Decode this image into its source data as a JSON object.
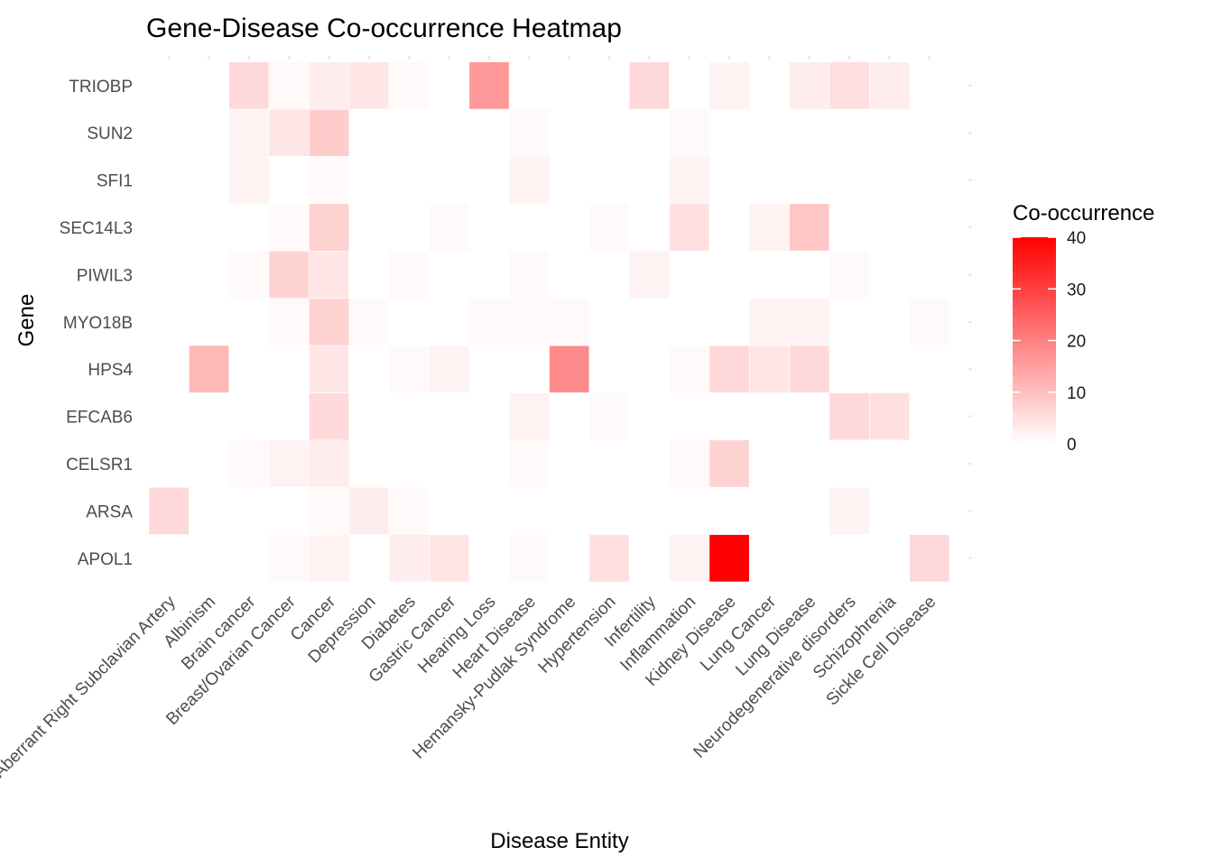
{
  "chart_data": {
    "type": "heatmap",
    "title": "Gene-Disease Co-occurrence Heatmap",
    "xlabel": "Disease Entity",
    "ylabel": "Gene",
    "x_categories": [
      "Aberrant Right Subclavian Artery",
      "Albinism",
      "Brain cancer",
      "Breast/Ovarian Cancer",
      "Cancer",
      "Depression",
      "Diabetes",
      "Gastric Cancer",
      "Hearing Loss",
      "Heart Disease",
      "Hemansky-Pudlak Syndrome",
      "Hypertension",
      "Infertility",
      "Inflammation",
      "Kidney Disease",
      "Lung Cancer",
      "Lung Disease",
      "Neurodegenerative disorders",
      "Schizophrenia",
      "Sickle Cell Disease"
    ],
    "y_categories": [
      "APOL1",
      "ARSA",
      "CELSR1",
      "EFCAB6",
      "HPS4",
      "MYO18B",
      "PIWIL3",
      "SEC14L3",
      "SFI1",
      "SUN2",
      "TRIOBP"
    ],
    "values": [
      [
        0,
        0,
        0,
        1,
        2,
        0,
        3,
        4,
        0,
        1,
        0,
        5,
        0,
        2,
        40,
        0,
        0,
        0,
        0,
        6
      ],
      [
        6,
        0,
        0,
        0,
        1,
        3,
        1,
        0,
        0,
        0,
        0,
        0,
        0,
        0,
        0,
        0,
        0,
        2,
        0,
        0
      ],
      [
        0,
        0,
        1,
        2,
        3,
        0,
        0,
        0,
        0,
        1,
        0,
        0,
        0,
        1,
        7,
        0,
        0,
        0,
        0,
        0
      ],
      [
        0,
        0,
        0,
        0,
        6,
        0,
        0,
        0,
        0,
        2,
        0,
        1,
        0,
        0,
        0,
        0,
        0,
        6,
        5,
        0
      ],
      [
        0,
        11,
        0,
        0,
        4,
        0,
        1,
        2,
        0,
        0,
        18,
        0,
        0,
        1,
        6,
        4,
        6,
        0,
        0,
        0
      ],
      [
        0,
        0,
        0,
        1,
        7,
        1,
        0,
        0,
        1,
        1,
        1,
        0,
        0,
        0,
        0,
        2,
        2,
        0,
        0,
        1
      ],
      [
        0,
        0,
        1,
        7,
        4,
        0,
        1,
        0,
        0,
        1,
        0,
        0,
        2,
        0,
        0,
        0,
        0,
        1,
        0,
        0
      ],
      [
        0,
        0,
        0,
        1,
        7,
        0,
        0,
        1,
        0,
        0,
        0,
        1,
        0,
        5,
        0,
        2,
        9,
        0,
        0,
        0
      ],
      [
        0,
        0,
        2,
        0,
        1,
        0,
        0,
        0,
        0,
        2,
        0,
        0,
        0,
        2,
        0,
        0,
        0,
        0,
        0,
        0
      ],
      [
        0,
        0,
        2,
        4,
        8,
        0,
        0,
        0,
        0,
        1,
        0,
        0,
        0,
        1,
        0,
        0,
        0,
        0,
        0,
        0
      ],
      [
        0,
        0,
        6,
        1,
        3,
        4,
        1,
        0,
        16,
        0,
        0,
        0,
        6,
        0,
        2,
        0,
        3,
        5,
        3,
        0
      ]
    ],
    "color_low": "#ffffff",
    "color_high": "#ff0000",
    "legend": {
      "title": "Co-occurrence",
      "ticks": [
        0,
        10,
        20,
        30,
        40
      ],
      "position": "right"
    },
    "grid": false
  }
}
